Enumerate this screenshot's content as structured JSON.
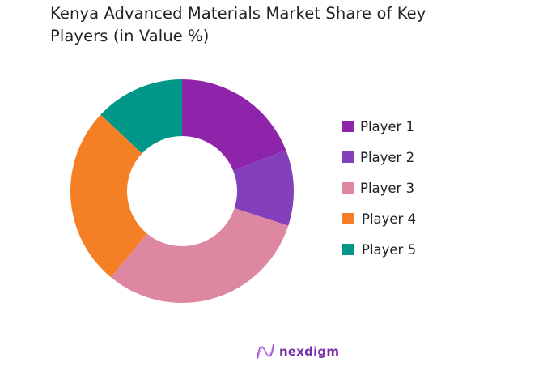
{
  "chart_data": {
    "type": "pie",
    "variant": "donut",
    "title": "Kenya Advanced Materials Market Share of Key Players (in Value %)",
    "title_lines": [
      "Kenya Advanced Materials Market Share of Key",
      "Players (in Value %)"
    ],
    "categories": [
      "Player 1",
      "Player 2",
      "Player 3",
      "Player 4",
      "Player 5"
    ],
    "values": [
      19,
      11,
      31,
      26,
      13
    ],
    "colors": [
      "#8e24aa",
      "#8440bb",
      "#de87a1",
      "#f47f24",
      "#009688"
    ],
    "unit": "%",
    "start_angle": "12 o'clock, clockwise",
    "legend_position": "right"
  },
  "branding": {
    "logo_text": "nexdigm",
    "logo_color": "#7a2ea8"
  }
}
